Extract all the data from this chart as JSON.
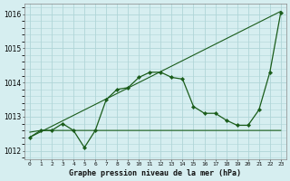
{
  "title": "Graphe pression niveau de la mer (hPa)",
  "bg_color": "#d6eef0",
  "grid_color": "#b0d5d8",
  "line_color": "#1a5c1a",
  "ylim": [
    1011.75,
    1016.3
  ],
  "yticks": [
    1012,
    1013,
    1014,
    1015,
    1016
  ],
  "ytick_labels": [
    "1012",
    "1013",
    "1014",
    "1015",
    "1016"
  ],
  "x_labels": [
    "0",
    "1",
    "2",
    "3",
    "4",
    "5",
    "6",
    "7",
    "8",
    "9",
    "10",
    "11",
    "12",
    "13",
    "14",
    "15",
    "16",
    "17",
    "18",
    "19",
    "20",
    "21",
    "22",
    "23"
  ],
  "series1": [
    1012.4,
    1012.6,
    1012.6,
    1012.8,
    1012.6,
    1012.1,
    1012.6,
    1013.5,
    1013.8,
    1013.85,
    1014.15,
    1014.3,
    1014.3,
    1014.15,
    1014.1,
    1013.3,
    1013.1,
    1013.1,
    1012.9,
    1012.75,
    1012.75,
    1013.2,
    1014.3,
    1016.05
  ],
  "series2_flat": [
    1012.55,
    1012.6,
    1012.6,
    1012.6,
    1012.6,
    1012.6,
    1012.6,
    1012.6,
    1012.6,
    1012.6,
    1012.6,
    1012.6,
    1012.6,
    1012.6,
    1012.6,
    1012.6,
    1012.6,
    1012.6,
    1012.6,
    1012.6,
    1012.6,
    1012.6,
    1012.6,
    1012.6
  ],
  "series3_diag": [
    1012.4,
    1012.56,
    1012.72,
    1012.88,
    1013.04,
    1013.2,
    1013.36,
    1013.52,
    1013.68,
    1013.84,
    1014.0,
    1014.16,
    1014.32,
    1014.48,
    1014.64,
    1014.8,
    1014.96,
    1015.12,
    1015.28,
    1015.44,
    1015.6,
    1015.76,
    1015.92,
    1016.08
  ]
}
